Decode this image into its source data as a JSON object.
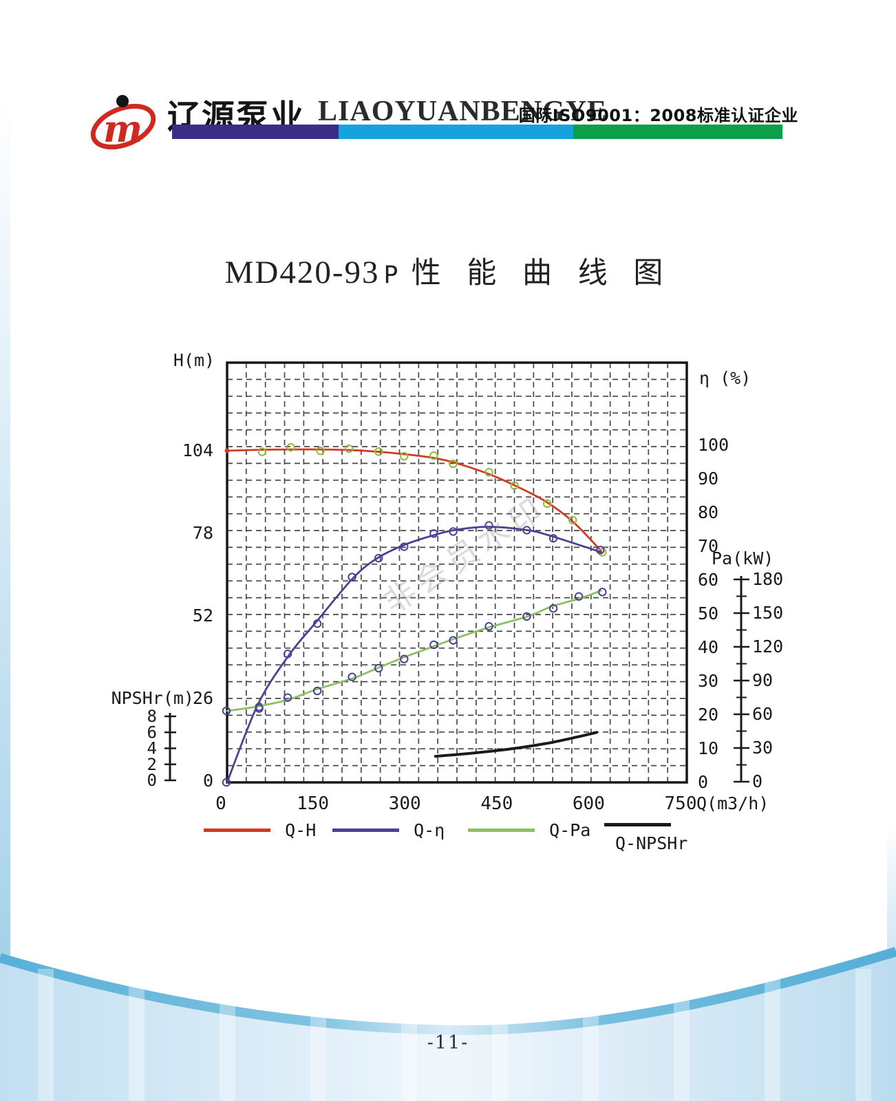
{
  "page": {
    "page_number": "-11-",
    "watermark": "非会员水印"
  },
  "header": {
    "company_cn": "辽源泵业",
    "company_en": "LIAOYUANBENGYE",
    "certification": "国际ISO9001：2008标准认证企业",
    "bar_colors": [
      "#3b2d85",
      "#14a3dc",
      "#0a9f48"
    ],
    "logo_color": "#cf2a20"
  },
  "title": {
    "model": "MD420-93",
    "suffix": "P",
    "cjk": "性 能 曲 线 图"
  },
  "chart_data": {
    "type": "line",
    "title": "MD420-93P 性能曲线图",
    "grid": {
      "on": true,
      "cols": 24,
      "rows": 25
    },
    "x_axis": {
      "label": "Q(m3/h)",
      "range": [
        0,
        750
      ],
      "ticks": [
        0,
        150,
        300,
        450,
        600,
        750
      ]
    },
    "y_axes": {
      "H": {
        "label": "H(m)",
        "ticks": [
          104,
          78,
          52,
          26,
          0
        ],
        "range": [
          0,
          131
        ]
      },
      "eta": {
        "label": "η (%)",
        "ticks": [
          100,
          90,
          80,
          70,
          60,
          50,
          40,
          30,
          20,
          10,
          0
        ],
        "range": [
          0,
          124
        ]
      },
      "Pa": {
        "label": "Pa(kW)",
        "ticks": [
          180,
          150,
          120,
          90,
          60,
          30,
          0
        ],
        "minor_ticks": [
          165,
          135,
          105,
          75,
          45,
          15
        ],
        "range": [
          0,
          183
        ]
      },
      "NPSHr": {
        "label": "NPSHr(m)",
        "ticks": [
          8,
          6,
          4,
          2,
          0
        ],
        "range": [
          0,
          8.5
        ]
      }
    },
    "series": [
      {
        "name": "Q-H",
        "axis": "H",
        "color": "#d23b23",
        "marker_color": "#93b83a",
        "marker_from": 1,
        "points": [
          [
            0,
            104
          ],
          [
            55,
            104.3
          ],
          [
            105,
            104.4
          ],
          [
            150,
            104.4
          ],
          [
            200,
            104.2
          ],
          [
            245,
            103.7
          ],
          [
            290,
            102.9
          ],
          [
            335,
            101.8
          ],
          [
            370,
            100.3
          ],
          [
            425,
            96.8
          ],
          [
            470,
            93
          ],
          [
            520,
            88
          ],
          [
            565,
            81.5
          ],
          [
            610,
            72.5
          ]
        ]
      },
      {
        "name": "Q-η",
        "axis": "eta",
        "color": "#4f3f94",
        "marker_color": "#4f3f94",
        "marker_from": 0,
        "points": [
          [
            0,
            0
          ],
          [
            50,
            23
          ],
          [
            100,
            37.5
          ],
          [
            145,
            47.5
          ],
          [
            205,
            60.5
          ],
          [
            245,
            66.5
          ],
          [
            290,
            70.5
          ],
          [
            335,
            73.2
          ],
          [
            370,
            74.8
          ],
          [
            425,
            75.8
          ],
          [
            490,
            74.8
          ],
          [
            530,
            73
          ],
          [
            610,
            68.3
          ]
        ]
      },
      {
        "name": "Q-Pa",
        "axis": "Pa",
        "color": "#8dc063",
        "marker_color": "#4f3f94",
        "marker_from": 0,
        "points": [
          [
            0,
            63
          ],
          [
            50,
            67
          ],
          [
            100,
            73
          ],
          [
            145,
            82
          ],
          [
            205,
            92
          ],
          [
            245,
            101
          ],
          [
            290,
            111
          ],
          [
            335,
            120
          ],
          [
            370,
            127
          ],
          [
            425,
            137
          ],
          [
            490,
            147
          ],
          [
            530,
            156
          ],
          [
            575,
            163
          ],
          [
            610,
            170
          ]
        ]
      },
      {
        "name": "Q-NPSHr",
        "axis": "NPSHr",
        "color": "#1a1a1a",
        "points": [
          [
            340,
            3.0
          ],
          [
            400,
            3.4
          ],
          [
            460,
            3.9
          ],
          [
            520,
            4.6
          ],
          [
            570,
            5.4
          ],
          [
            603,
            6.0
          ]
        ]
      }
    ],
    "legend": [
      {
        "label": "Q-H",
        "color": "#d23b23"
      },
      {
        "label": "Q-η",
        "color": "#4f3f94"
      },
      {
        "label": "Q-Pa",
        "color": "#8dc063"
      },
      {
        "label": "Q-NPSHr",
        "color": "#1a1a1a"
      }
    ],
    "legend_position": "bottom"
  },
  "footer": {
    "wave_color": "#5fb3da",
    "fill_color": "#cde7f5"
  }
}
